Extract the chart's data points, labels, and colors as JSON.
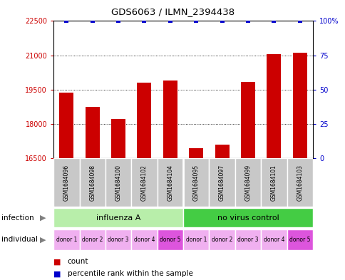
{
  "title": "GDS6063 / ILMN_2394438",
  "samples": [
    "GSM1684096",
    "GSM1684098",
    "GSM1684100",
    "GSM1684102",
    "GSM1684104",
    "GSM1684095",
    "GSM1684097",
    "GSM1684099",
    "GSM1684101",
    "GSM1684103"
  ],
  "counts": [
    19380,
    18750,
    18200,
    19800,
    19900,
    16950,
    17100,
    19850,
    21050,
    21100
  ],
  "percentile_ranks": [
    100,
    100,
    100,
    100,
    100,
    100,
    100,
    100,
    100,
    100
  ],
  "ylim_left": [
    16500,
    22500
  ],
  "ylim_right": [
    0,
    100
  ],
  "yticks_left": [
    16500,
    18000,
    19500,
    21000,
    22500
  ],
  "yticks_right": [
    0,
    25,
    50,
    75,
    100
  ],
  "infection_groups": [
    {
      "label": "influenza A",
      "start": 0,
      "end": 5,
      "color": "#b8eeaa"
    },
    {
      "label": "no virus control",
      "start": 5,
      "end": 10,
      "color": "#44cc44"
    }
  ],
  "individuals": [
    "donor 1",
    "donor 2",
    "donor 3",
    "donor 4",
    "donor 5",
    "donor 1",
    "donor 2",
    "donor 3",
    "donor 4",
    "donor 5"
  ],
  "individual_colors": [
    "#f0b0f0",
    "#f0b0f0",
    "#f0b0f0",
    "#f0b0f0",
    "#dd55dd",
    "#f0b0f0",
    "#f0b0f0",
    "#f0b0f0",
    "#f0b0f0",
    "#dd55dd"
  ],
  "bar_color": "#cc0000",
  "dot_color": "#0000cc",
  "bar_width": 0.55,
  "sample_bg_color": "#c8c8c8",
  "group_divider": 4.5
}
